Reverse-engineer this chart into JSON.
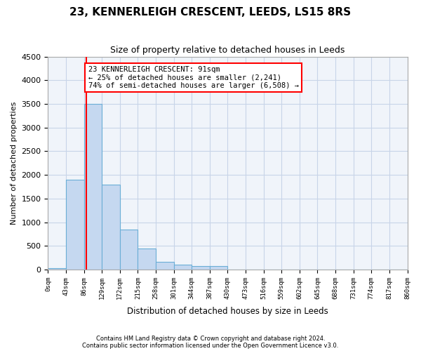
{
  "title": "23, KENNERLEIGH CRESCENT, LEEDS, LS15 8RS",
  "subtitle": "Size of property relative to detached houses in Leeds",
  "xlabel": "Distribution of detached houses by size in Leeds",
  "ylabel": "Number of detached properties",
  "bar_color": "#c5d8f0",
  "bar_edge_color": "#6aaed6",
  "grid_color": "#c8d4e8",
  "background_color": "#f0f4fa",
  "property_line_x": 91,
  "property_line_color": "red",
  "annotation_text": "23 KENNERLEIGH CRESCENT: 91sqm\n← 25% of detached houses are smaller (2,241)\n74% of semi-detached houses are larger (6,508) →",
  "annotation_box_color": "red",
  "footer_line1": "Contains HM Land Registry data © Crown copyright and database right 2024.",
  "footer_line2": "Contains public sector information licensed under the Open Government Licence v3.0.",
  "bin_edges": [
    0,
    43,
    86,
    129,
    172,
    215,
    258,
    301,
    344,
    387,
    430,
    473,
    516,
    559,
    602,
    645,
    688,
    731,
    774,
    817,
    860
  ],
  "bin_labels": [
    "0sqm",
    "43sqm",
    "86sqm",
    "129sqm",
    "172sqm",
    "215sqm",
    "258sqm",
    "301sqm",
    "344sqm",
    "387sqm",
    "430sqm",
    "473sqm",
    "516sqm",
    "559sqm",
    "602sqm",
    "645sqm",
    "688sqm",
    "731sqm",
    "774sqm",
    "817sqm",
    "860sqm"
  ],
  "bar_heights": [
    30,
    1900,
    3500,
    1800,
    850,
    450,
    160,
    100,
    75,
    70,
    0,
    0,
    0,
    0,
    0,
    0,
    0,
    0,
    0,
    0
  ],
  "ylim": [
    0,
    4500
  ],
  "yticks": [
    0,
    500,
    1000,
    1500,
    2000,
    2500,
    3000,
    3500,
    4000,
    4500
  ]
}
